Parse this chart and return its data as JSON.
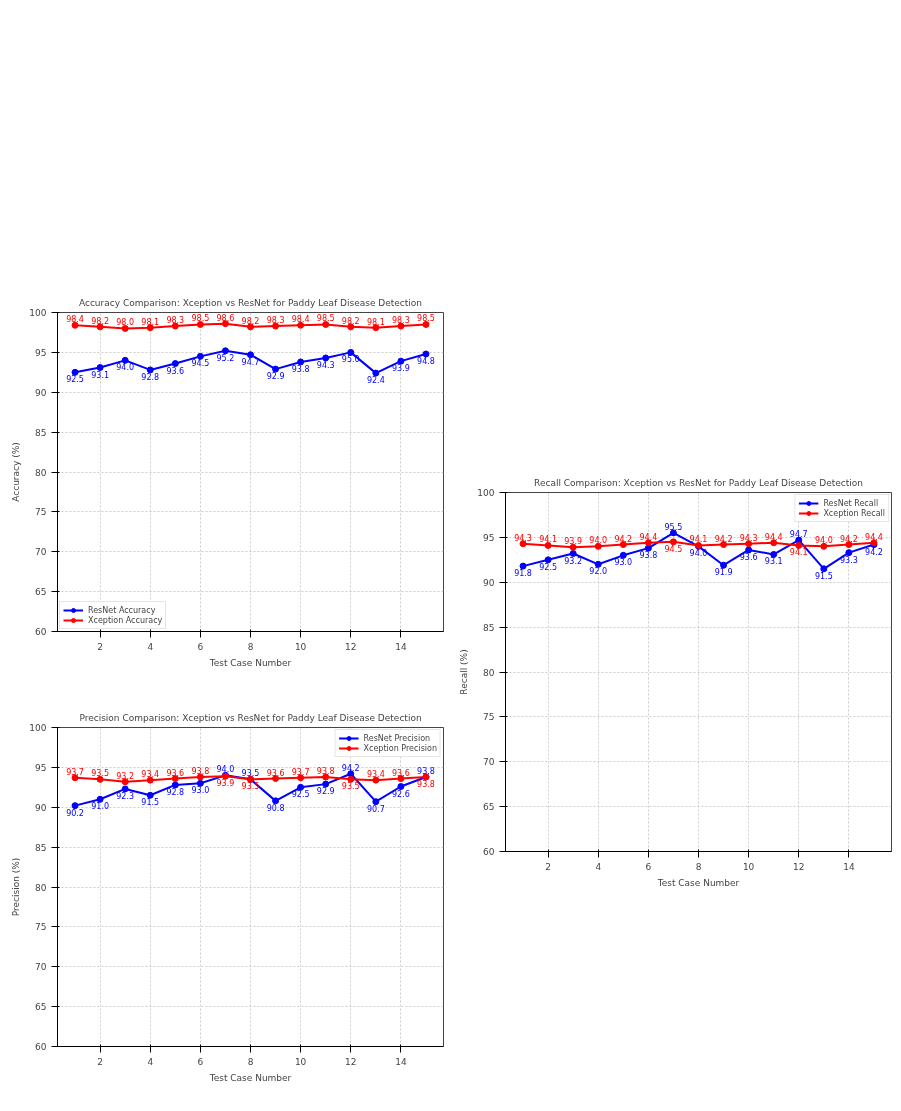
{
  "chart_data": [
    {
      "type": "line",
      "title": "Accuracy Comparison: Xception vs ResNet for Paddy Leaf Disease Detection",
      "xlabel": "Test Case Number",
      "ylabel": "Accuracy (%)",
      "x": [
        1,
        2,
        3,
        4,
        5,
        6,
        7,
        8,
        9,
        10,
        11,
        12,
        13,
        14,
        15
      ],
      "series": [
        {
          "name": "ResNet Accuracy",
          "color": "#0000ff",
          "values": [
            92.5,
            93.1,
            94.0,
            92.8,
            93.6,
            94.5,
            95.2,
            94.7,
            92.9,
            93.8,
            94.3,
            95.0,
            92.4,
            93.9,
            94.8
          ],
          "value_labels": [
            "92.5",
            "93.1",
            "94.0",
            "92.8",
            "93.6",
            "94.5",
            "95.2",
            "94.7",
            "92.9",
            "93.8",
            "94.3",
            "95.0",
            "92.4",
            "93.9",
            "94.8"
          ]
        },
        {
          "name": "Xception Accuracy",
          "color": "#ff0000",
          "values": [
            98.4,
            98.2,
            98.0,
            98.1,
            98.3,
            98.5,
            98.6,
            98.2,
            98.3,
            98.4,
            98.5,
            98.2,
            98.1,
            98.3,
            98.5
          ],
          "value_labels": [
            "98.4",
            "98.2",
            "98.0",
            "98.1",
            "98.3",
            "98.5",
            "98.6",
            "98.2",
            "98.3",
            "98.4",
            "98.5",
            "98.2",
            "98.1",
            "98.3",
            "98.5"
          ]
        }
      ],
      "xlim": [
        0.3,
        15.7
      ],
      "xticks": [
        2,
        4,
        6,
        8,
        10,
        12,
        14
      ],
      "ylim": [
        60,
        100
      ],
      "yticks": [
        60,
        65,
        70,
        75,
        80,
        85,
        90,
        95,
        100
      ],
      "grid": true,
      "legend": "bottom left",
      "marker": "circle",
      "line_style": "solid"
    },
    {
      "type": "line",
      "title": "Recall Comparison: Xception vs ResNet for Paddy Leaf Disease Detection",
      "xlabel": "Test Case Number",
      "ylabel": "Recall (%)",
      "x": [
        1,
        2,
        3,
        4,
        5,
        6,
        7,
        8,
        9,
        10,
        11,
        12,
        13,
        14,
        15
      ],
      "series": [
        {
          "name": "ResNet Recall",
          "color": "#0000ff",
          "values": [
            91.8,
            92.5,
            93.2,
            92.0,
            93.0,
            93.8,
            95.5,
            94.0,
            91.9,
            93.6,
            93.1,
            94.7,
            91.5,
            93.3,
            94.2
          ],
          "value_labels": [
            "91.8",
            "92.5",
            "93.2",
            "92.0",
            "93.0",
            "93.8",
            "95.5",
            "94.0",
            "91.9",
            "93.6",
            "93.1",
            "94.7",
            "91.5",
            "93.3",
            "94.2"
          ]
        },
        {
          "name": "Xception Recall",
          "color": "#ff0000",
          "values": [
            94.3,
            94.1,
            93.9,
            94.0,
            94.2,
            94.4,
            94.5,
            94.1,
            94.2,
            94.3,
            94.4,
            94.1,
            94.0,
            94.2,
            94.4
          ],
          "value_labels": [
            "94.3",
            "94.1",
            "93.9",
            "94.0",
            "94.2",
            "94.4",
            "94.5",
            "94.1",
            "94.2",
            "94.3",
            "94.4",
            "94.1",
            "94.0",
            "94.2",
            "94.4"
          ]
        }
      ],
      "xlim": [
        0.3,
        15.7
      ],
      "xticks": [
        2,
        4,
        6,
        8,
        10,
        12,
        14
      ],
      "ylim": [
        60,
        100
      ],
      "yticks": [
        60,
        65,
        70,
        75,
        80,
        85,
        90,
        95,
        100
      ],
      "grid": true,
      "legend": "top right",
      "marker": "circle",
      "line_style": "solid"
    },
    {
      "type": "line",
      "title": "Precision Comparison: Xception vs ResNet for Paddy Leaf Disease Detection",
      "xlabel": "Test Case Number",
      "ylabel": "Precision (%)",
      "x": [
        1,
        2,
        3,
        4,
        5,
        6,
        7,
        8,
        9,
        10,
        11,
        12,
        13,
        14,
        15
      ],
      "series": [
        {
          "name": "ResNet Precision",
          "color": "#0000ff",
          "values": [
            90.2,
            91.0,
            92.3,
            91.5,
            92.8,
            93.0,
            94.0,
            93.5,
            90.8,
            92.5,
            92.9,
            94.2,
            90.7,
            92.6,
            93.8
          ],
          "value_labels": [
            "90.2",
            "91.0",
            "92.3",
            "91.5",
            "92.8",
            "93.0",
            "94.0",
            "93.5",
            "90.8",
            "92.5",
            "92.9",
            "94.2",
            "90.7",
            "92.6",
            "93.8"
          ]
        },
        {
          "name": "Xception Precision",
          "color": "#ff0000",
          "values": [
            93.7,
            93.5,
            93.2,
            93.4,
            93.6,
            93.8,
            93.9,
            93.5,
            93.6,
            93.7,
            93.8,
            93.5,
            93.4,
            93.6,
            93.8
          ],
          "value_labels": [
            "93.7",
            "93.5",
            "93.2",
            "93.4",
            "93.6",
            "93.8",
            "93.9",
            "93.5",
            "93.6",
            "93.7",
            "93.8",
            "93.5",
            "93.4",
            "93.6",
            "93.8"
          ]
        }
      ],
      "xlim": [
        0.3,
        15.7
      ],
      "xticks": [
        2,
        4,
        6,
        8,
        10,
        12,
        14
      ],
      "ylim": [
        60,
        100
      ],
      "yticks": [
        60,
        65,
        70,
        75,
        80,
        85,
        90,
        95,
        100
      ],
      "grid": true,
      "legend": "top right",
      "marker": "circle",
      "line_style": "solid"
    }
  ]
}
